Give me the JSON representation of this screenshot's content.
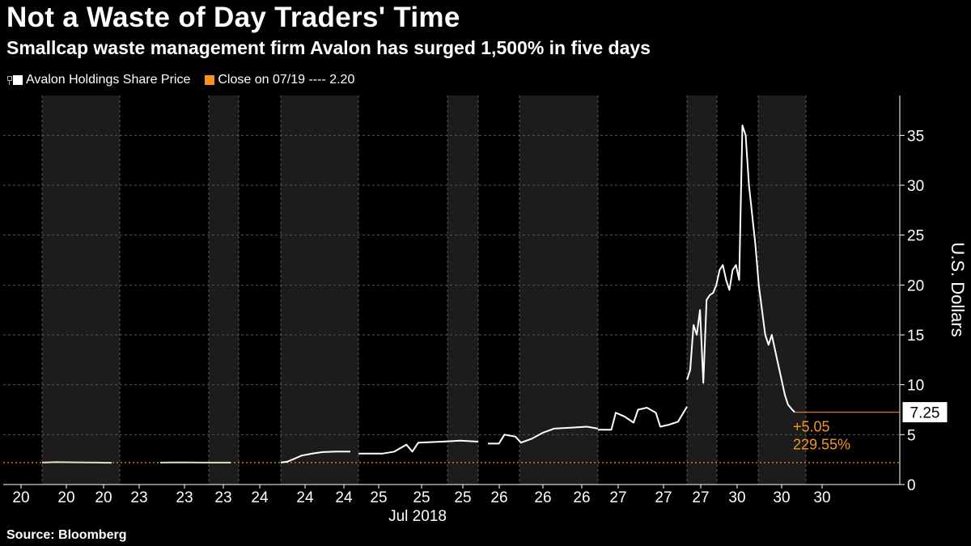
{
  "header": {
    "title": "Not a Waste of Day Traders' Time",
    "subtitle": "Smallcap waste management firm Avalon has surged 1,500% in five days"
  },
  "legend": {
    "series_label": "Avalon Holdings Share Price",
    "close_label": "Close on 07/19 ---- 2.20"
  },
  "footer": {
    "source": "Source: Bloomberg"
  },
  "colors": {
    "background": "#000000",
    "shade": "#1c1c1c",
    "line": "#ffffff",
    "accent": "#f7931e",
    "grid": "#555555"
  },
  "chart_data": {
    "type": "line",
    "title": "Not a Waste of Day Traders' Time",
    "ylabel": "U.S. Dollars",
    "ylim": [
      0,
      39
    ],
    "yticks": [
      0,
      5,
      10,
      15,
      20,
      25,
      30,
      35
    ],
    "grid": true,
    "xlabel": "Jul 2018",
    "x_tick_labels": [
      "20",
      "20",
      "20",
      "23",
      "23",
      "23",
      "24",
      "24",
      "24",
      "25",
      "25",
      "25",
      "26",
      "26",
      "26",
      "27",
      "27",
      "27",
      "30",
      "30",
      "30"
    ],
    "reference_line": {
      "name": "Close on 07/19",
      "value": 2.2
    },
    "last_value": 7.25,
    "change_abs": "+5.05",
    "change_pct": "229.55%",
    "series": [
      {
        "name": "Avalon Holdings Share Price",
        "segments": [
          {
            "day": "20",
            "points": [
              [
                0,
                2.2
              ],
              [
                0.2,
                2.25
              ],
              [
                0.5,
                2.22
              ],
              [
                0.8,
                2.2
              ],
              [
                1,
                2.18
              ]
            ]
          },
          {
            "day": "23",
            "points": [
              [
                0,
                2.2
              ],
              [
                0.3,
                2.22
              ],
              [
                0.6,
                2.2
              ],
              [
                1,
                2.2
              ]
            ]
          },
          {
            "day": "24",
            "points": [
              [
                0,
                2.2
              ],
              [
                0.1,
                2.3
              ],
              [
                0.2,
                2.6
              ],
              [
                0.3,
                2.9
              ],
              [
                0.45,
                3.1
              ],
              [
                0.6,
                3.25
              ],
              [
                0.8,
                3.3
              ],
              [
                1,
                3.3
              ]
            ]
          },
          {
            "day": "25",
            "points": [
              [
                0,
                3.1
              ],
              [
                0.2,
                3.1
              ],
              [
                0.3,
                3.3
              ],
              [
                0.4,
                4.0
              ],
              [
                0.45,
                3.3
              ],
              [
                0.5,
                4.2
              ],
              [
                0.7,
                4.3
              ],
              [
                0.85,
                4.4
              ],
              [
                1,
                4.3
              ]
            ]
          },
          {
            "day": "26",
            "points": [
              [
                0,
                4.1
              ],
              [
                0.1,
                4.1
              ],
              [
                0.15,
                5.0
              ],
              [
                0.25,
                4.8
              ],
              [
                0.3,
                4.2
              ],
              [
                0.4,
                4.6
              ],
              [
                0.5,
                5.2
              ],
              [
                0.6,
                5.6
              ],
              [
                0.75,
                5.7
              ],
              [
                0.9,
                5.8
              ],
              [
                1,
                5.6
              ]
            ]
          },
          {
            "day": "27",
            "points": [
              [
                0,
                5.5
              ],
              [
                0.15,
                5.5
              ],
              [
                0.2,
                7.2
              ],
              [
                0.3,
                6.8
              ],
              [
                0.4,
                6.2
              ],
              [
                0.45,
                7.5
              ],
              [
                0.55,
                7.7
              ],
              [
                0.65,
                7.2
              ],
              [
                0.7,
                5.8
              ],
              [
                0.8,
                6.0
              ],
              [
                0.9,
                6.3
              ],
              [
                1,
                7.8
              ]
            ]
          },
          {
            "day": "30",
            "points": [
              [
                0,
                10.5
              ],
              [
                0.05,
                11.5
              ],
              [
                0.1,
                16.0
              ],
              [
                0.15,
                15.0
              ],
              [
                0.2,
                17.5
              ],
              [
                0.25,
                10.2
              ],
              [
                0.3,
                18.5
              ],
              [
                0.35,
                19.0
              ],
              [
                0.4,
                19.2
              ],
              [
                0.45,
                20.0
              ],
              [
                0.5,
                21.5
              ],
              [
                0.55,
                22.0
              ],
              [
                0.6,
                20.5
              ],
              [
                0.65,
                19.5
              ],
              [
                0.7,
                21.5
              ],
              [
                0.75,
                22.0
              ],
              [
                0.8,
                20.5
              ],
              [
                0.85,
                36.0
              ],
              [
                0.9,
                35.0
              ],
              [
                0.95,
                30.0
              ],
              [
                1,
                27.0
              ],
              [
                1.05,
                24.0
              ],
              [
                1.1,
                20.0
              ],
              [
                1.15,
                17.5
              ],
              [
                1.2,
                15.0
              ],
              [
                1.25,
                14.0
              ],
              [
                1.3,
                15.0
              ],
              [
                1.35,
                13.5
              ],
              [
                1.4,
                12.0
              ],
              [
                1.45,
                10.5
              ],
              [
                1.5,
                9.0
              ],
              [
                1.55,
                8.0
              ],
              [
                1.6,
                7.6
              ],
              [
                1.65,
                7.25
              ]
            ]
          }
        ]
      }
    ]
  }
}
